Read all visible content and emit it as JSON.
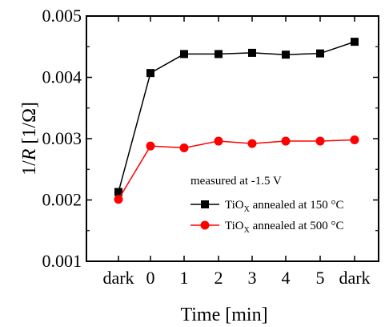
{
  "chart_data": {
    "type": "line",
    "categories": [
      "dark",
      "0",
      "1",
      "2",
      "3",
      "4",
      "5",
      "dark"
    ],
    "series": [
      {
        "name": "TiO_X annealed at 150 °C",
        "name_main": "TiO",
        "name_sub": "X",
        "name_rest": " annealed at 150 °C",
        "color": "#000000",
        "marker": "square",
        "values": [
          0.00213,
          0.00407,
          0.00438,
          0.00438,
          0.0044,
          0.00437,
          0.00439,
          0.00458
        ]
      },
      {
        "name": "TiO_X annealed at 500 °C",
        "name_main": "TiO",
        "name_sub": "X",
        "name_rest": " annealed at 500 °C",
        "color": "#ff0000",
        "marker": "circle",
        "values": [
          0.00201,
          0.00288,
          0.00285,
          0.00296,
          0.00292,
          0.00296,
          0.00296,
          0.00298
        ]
      }
    ],
    "xlabel": "Time [min]",
    "ylabel_parts": {
      "a": "1/",
      "b": "R",
      "c": " [1/Ω]"
    },
    "ylim": [
      0.001,
      0.005
    ],
    "yticks": [
      "0.001",
      "0.002",
      "0.003",
      "0.004",
      "0.005"
    ],
    "ytick_values": [
      0.001,
      0.002,
      0.003,
      0.004,
      0.005
    ],
    "annotation": "measured at -1.5 V",
    "legend_placement": "lower-right",
    "grid": false
  }
}
